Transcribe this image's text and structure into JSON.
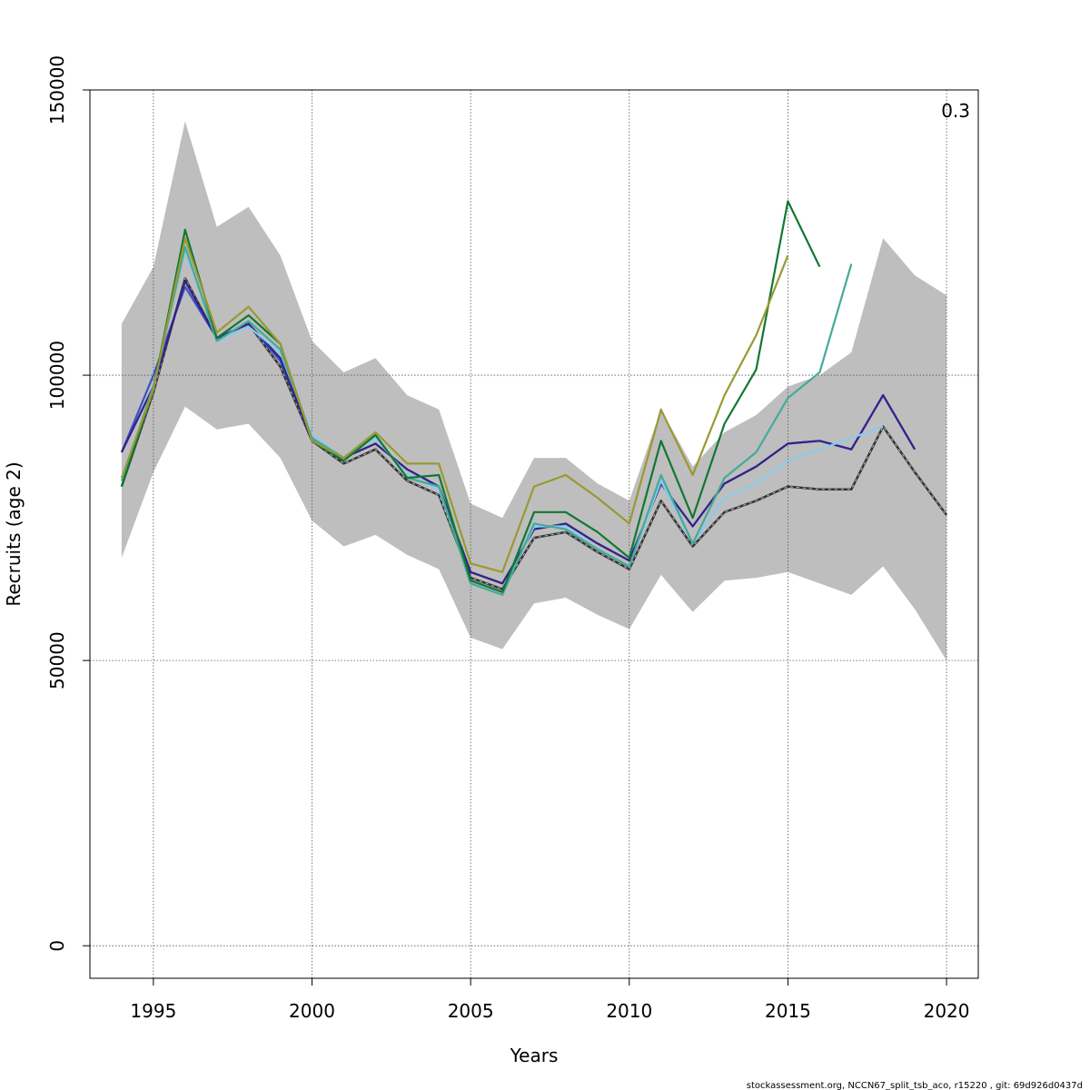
{
  "chart_data": {
    "type": "line",
    "xlabel": "Years",
    "ylabel": "Recruits (age 2)",
    "corner_label": "0.3",
    "xlim": [
      1993,
      2021
    ],
    "ylim": [
      -5700,
      150000
    ],
    "x_ticks": [
      1995,
      2000,
      2005,
      2010,
      2015,
      2020
    ],
    "y_ticks": [
      0,
      50000,
      100000,
      150000
    ],
    "grid": true,
    "band": {
      "x": [
        1994,
        1995,
        1996,
        1997,
        1998,
        1999,
        2000,
        2001,
        2002,
        2003,
        2004,
        2005,
        2006,
        2007,
        2008,
        2009,
        2010,
        2011,
        2012,
        2013,
        2014,
        2015,
        2016,
        2017,
        2018,
        2019,
        2020
      ],
      "upper": [
        109000,
        119000,
        144500,
        126000,
        129500,
        121000,
        106000,
        100500,
        103000,
        96500,
        94000,
        77500,
        75000,
        85500,
        85500,
        81000,
        78000,
        94000,
        84000,
        90000,
        93000,
        98000,
        100000,
        104000,
        124000,
        117500,
        114000
      ],
      "lower": [
        68000,
        83000,
        94500,
        90500,
        91500,
        85500,
        74500,
        70000,
        72000,
        68500,
        66000,
        54000,
        52000,
        60000,
        61000,
        58000,
        55500,
        65000,
        58500,
        64000,
        64500,
        65500,
        63500,
        61500,
        66500,
        59000,
        50000
      ],
      "color": "#bebebe"
    },
    "series": [
      {
        "color": "#333333",
        "dashed": true,
        "x": [
          1994,
          1995,
          1996,
          1997,
          1998,
          1999,
          2000,
          2001,
          2002,
          2003,
          2004,
          2005,
          2006,
          2007,
          2008,
          2009,
          2010,
          2011,
          2012,
          2013,
          2014,
          2015,
          2016,
          2017,
          2018,
          2019,
          2020
        ],
        "values": [
          80500,
          97000,
          117000,
          106500,
          109000,
          101500,
          88500,
          84500,
          87000,
          81500,
          79000,
          64500,
          62500,
          71500,
          72500,
          69000,
          66000,
          78000,
          70000,
          76000,
          78000,
          80500,
          80000,
          80000,
          91000,
          83000,
          75500
        ]
      },
      {
        "color": "#3a52c4",
        "dashed": false,
        "x": [
          1994,
          1995,
          1996,
          1997,
          1998,
          1999,
          2000,
          2001,
          2002,
          2003,
          2004,
          2005,
          2006,
          2007,
          2008,
          2009,
          2010,
          2011,
          2012,
          2013,
          2014,
          2015,
          2016,
          2017,
          2018,
          2019
        ],
        "values": [
          86500,
          100000,
          115500,
          106500,
          109000,
          102500,
          89000,
          85500,
          88000,
          83500,
          80500,
          65500,
          63500,
          73000,
          74000,
          70500,
          67500,
          81000,
          73500,
          81000,
          84000,
          88000,
          88500,
          87000,
          96500,
          87000
        ]
      },
      {
        "color": "#332288",
        "dashed": false,
        "x": [
          1994,
          1995,
          1996,
          1997,
          1998,
          1999,
          2000,
          2001,
          2002,
          2003,
          2004,
          2005,
          2006,
          2007,
          2008,
          2009,
          2010,
          2011,
          2012,
          2013,
          2014,
          2015,
          2016,
          2017,
          2018,
          2019
        ],
        "values": [
          86500,
          98000,
          116500,
          106500,
          109000,
          103000,
          88500,
          85500,
          88000,
          83500,
          80500,
          65500,
          63500,
          73000,
          74000,
          70500,
          67500,
          81000,
          73500,
          81000,
          84000,
          88000,
          88500,
          87000,
          96500,
          87000
        ]
      },
      {
        "color": "#88ccee",
        "dashed": false,
        "x": [
          1994,
          1995,
          1996,
          1997,
          1998,
          1999,
          2000,
          2001,
          2002,
          2003,
          2004,
          2005,
          2006,
          2007,
          2008,
          2009,
          2010,
          2011,
          2012,
          2013,
          2014,
          2015,
          2016,
          2017,
          2018
        ],
        "values": [
          82000,
          98000,
          122000,
          106000,
          108500,
          104000,
          89500,
          85500,
          89000,
          82500,
          80000,
          64000,
          62000,
          73500,
          73500,
          69500,
          66500,
          81500,
          70500,
          78500,
          81000,
          85000,
          87000,
          89000,
          91000
        ]
      },
      {
        "color": "#44aa99",
        "dashed": false,
        "x": [
          1994,
          1995,
          1996,
          1997,
          1998,
          1999,
          2000,
          2001,
          2002,
          2003,
          2004,
          2005,
          2006,
          2007,
          2008,
          2009,
          2010,
          2011,
          2012,
          2013,
          2014,
          2015,
          2016,
          2017
        ],
        "values": [
          81500,
          98000,
          122500,
          106000,
          109500,
          104500,
          89000,
          85500,
          89500,
          82000,
          80500,
          63500,
          61500,
          74000,
          73000,
          69500,
          66500,
          82500,
          70500,
          82000,
          86500,
          96000,
          100500,
          119500
        ]
      },
      {
        "color": "#117733",
        "dashed": false,
        "x": [
          1994,
          1995,
          1996,
          1997,
          1998,
          1999,
          2000,
          2001,
          2002,
          2003,
          2004,
          2005,
          2006,
          2007,
          2008,
          2009,
          2010,
          2011,
          2012,
          2013,
          2014,
          2015,
          2016
        ],
        "values": [
          80500,
          97500,
          125500,
          106500,
          110500,
          105500,
          88500,
          85000,
          89500,
          82000,
          82500,
          64000,
          62000,
          76000,
          76000,
          72500,
          68000,
          88500,
          75000,
          91500,
          101000,
          130500,
          119000
        ]
      },
      {
        "color": "#999933",
        "dashed": false,
        "x": [
          1994,
          1995,
          1996,
          1997,
          1998,
          1999,
          2000,
          2001,
          2002,
          2003,
          2004,
          2005,
          2006,
          2007,
          2008,
          2009,
          2010,
          2011,
          2012,
          2013,
          2014,
          2015
        ],
        "values": [
          82000,
          97500,
          124000,
          107500,
          112000,
          105500,
          88500,
          85500,
          90000,
          84500,
          84500,
          67000,
          65500,
          80500,
          82500,
          78500,
          74000,
          94000,
          82500,
          96500,
          107000,
          121000
        ]
      }
    ]
  },
  "footer": "stockassessment.org, NCCN67_split_tsb_aco, r15220 , git: 69d926d0437d"
}
